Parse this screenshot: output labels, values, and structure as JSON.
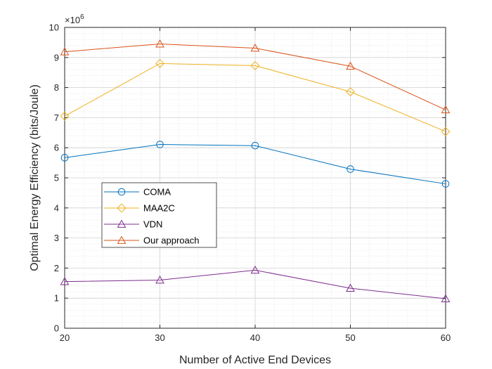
{
  "chart_data": {
    "type": "line",
    "title": "",
    "xlabel": "Number of Active End Devices",
    "ylabel": "Optimal Energy Efficiency (bits/Joule)",
    "y_multiplier_base": "×10",
    "y_multiplier_exponent": "6",
    "x": [
      20,
      30,
      40,
      50,
      60
    ],
    "xlim": [
      20,
      60
    ],
    "ylim": [
      0,
      10
    ],
    "xticks": [
      20,
      30,
      40,
      50,
      60
    ],
    "yticks": [
      0,
      1,
      2,
      3,
      4,
      5,
      6,
      7,
      8,
      9,
      10
    ],
    "grid": true,
    "minor_grid": true,
    "legend_position": "center-left",
    "series": [
      {
        "name": "COMA",
        "color": "#0072BD",
        "marker": "circle",
        "values": [
          5.67,
          6.11,
          6.07,
          5.29,
          4.8
        ]
      },
      {
        "name": "MAA2C",
        "color": "#EDB120",
        "marker": "diamond",
        "values": [
          7.05,
          8.8,
          8.73,
          7.86,
          6.54
        ]
      },
      {
        "name": "VDN",
        "color": "#7E2F8E",
        "marker": "triangle",
        "values": [
          1.55,
          1.6,
          1.93,
          1.33,
          0.98
        ]
      },
      {
        "name": "Our approach",
        "color": "#D95319",
        "marker": "triangle",
        "values": [
          9.19,
          9.45,
          9.31,
          8.71,
          7.26
        ]
      }
    ]
  }
}
